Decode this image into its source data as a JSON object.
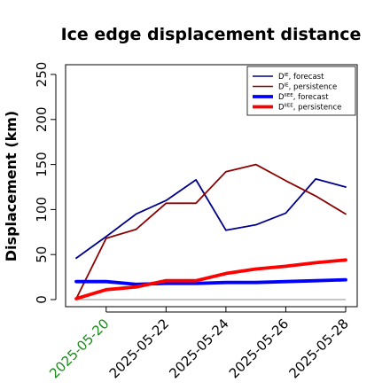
{
  "chart_data": {
    "type": "line",
    "title": "Ice edge displacement distance",
    "ylabel": "Displacement (km)",
    "xlabel": "",
    "ylim": [
      0,
      250
    ],
    "yticks": [
      0,
      50,
      100,
      150,
      200,
      250
    ],
    "x": [
      "2025-05-19",
      "2025-05-20",
      "2025-05-21",
      "2025-05-22",
      "2025-05-23",
      "2025-05-24",
      "2025-05-25",
      "2025-05-26",
      "2025-05-27",
      "2025-05-28"
    ],
    "xtick_labels": [
      "2025-05-20",
      "2025-05-22",
      "2025-05-24",
      "2025-05-26",
      "2025-05-28"
    ],
    "highlighted_tick": "2025-05-20",
    "highlight_color": "#1a8a1a",
    "legend_position": "top-right",
    "grid": false,
    "series": [
      {
        "name": "D^IE, forecast",
        "label_main": "D",
        "label_sup": "IE",
        "label_rest": ", forecast",
        "color": "#00008b",
        "width": "thin",
        "values": [
          46,
          70,
          95,
          110,
          133,
          77,
          83,
          96,
          134,
          125
        ]
      },
      {
        "name": "D^IE, persistence",
        "label_main": "D",
        "label_sup": "IE",
        "label_rest": ", persistence",
        "color": "#8b0000",
        "width": "thin",
        "values": [
          1,
          68,
          78,
          107,
          107,
          142,
          150,
          132,
          115,
          95
        ]
      },
      {
        "name": "D^IIEE, forecast",
        "label_main": "D",
        "label_sup": "IIEE",
        "label_rest": ", forecast",
        "color": "#0000ff",
        "width": "thick",
        "values": [
          20,
          20,
          17,
          18,
          18,
          19,
          19,
          20,
          21,
          22
        ]
      },
      {
        "name": "D^IIEE, persistence",
        "label_main": "D",
        "label_sup": "IIEE",
        "label_rest": ", persistence",
        "color": "#ff0000",
        "width": "thick",
        "values": [
          1,
          11,
          14,
          21,
          21,
          29,
          34,
          37,
          41,
          44
        ]
      }
    ]
  }
}
